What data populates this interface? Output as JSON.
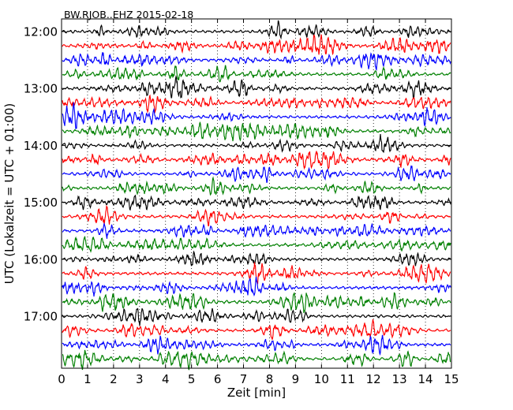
{
  "chart_data": {
    "type": "line",
    "title": "BW.RJOB..EHZ 2015-02-18",
    "xlabel": "Zeit  [min]",
    "ylabel": "UTC (Lokalzeit = UTC + 01:00)",
    "x_ticks": [
      "0",
      "1",
      "2",
      "3",
      "4",
      "5",
      "6",
      "7",
      "8",
      "9",
      "10",
      "11",
      "12",
      "13",
      "14",
      "15"
    ],
    "xlim": [
      0,
      15
    ],
    "y_ticks": [
      "12:00",
      "13:00",
      "14:00",
      "15:00",
      "16:00",
      "17:00"
    ],
    "y_tick_rows": [
      0,
      4,
      8,
      12,
      16,
      20
    ],
    "rows": 24,
    "row_start": "12:00",
    "row_interval_min": 15,
    "grid": "vertical dotted",
    "colors": [
      "#000000",
      "#ff0000",
      "#0000ff",
      "#008000"
    ]
  }
}
